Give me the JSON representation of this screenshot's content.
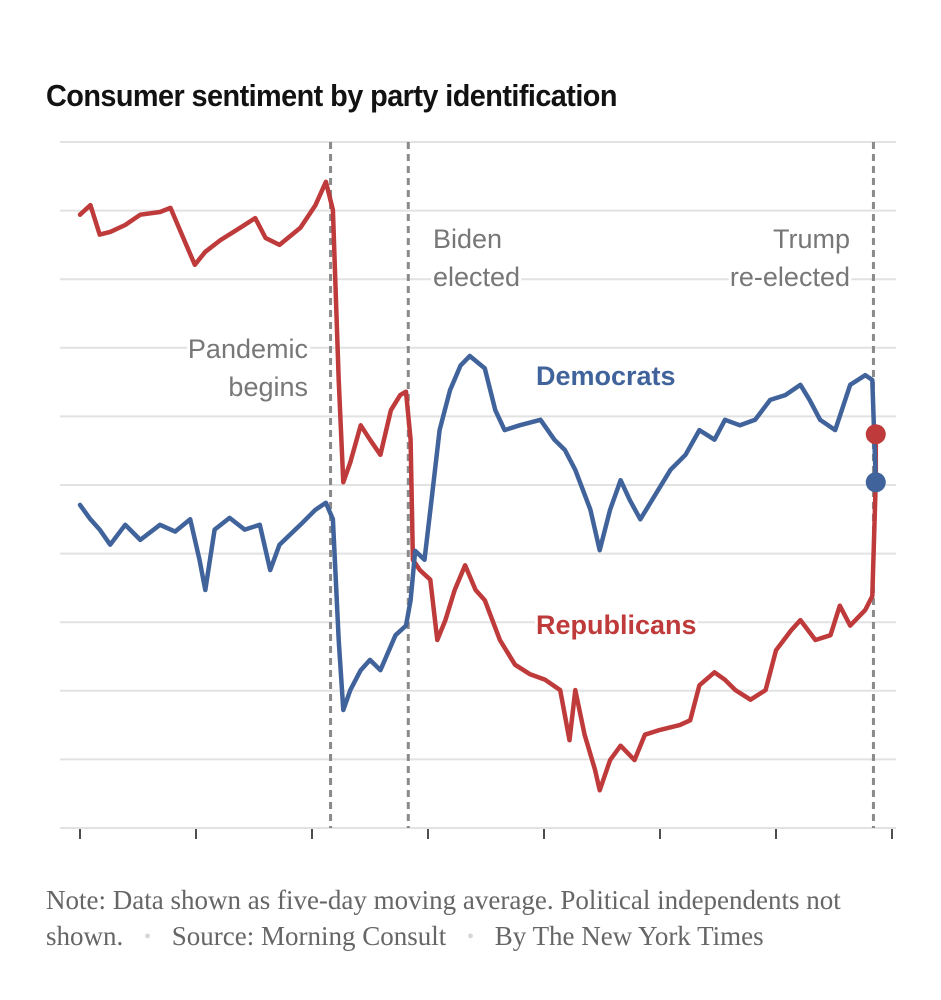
{
  "chart_data": {
    "type": "line",
    "title": "Consumer sentiment by party identification",
    "xlabel": "",
    "ylabel": "",
    "x_unit": "year",
    "y_unit": "relative index (gridline units, 0 = bottom gridline, 10 = top gridline; approximate)",
    "xlim": [
      2017.9,
      2025.2
    ],
    "ylim": [
      0,
      10
    ],
    "grid": true,
    "x_ticks": [
      2018,
      2019,
      2020,
      2021,
      2022,
      2023,
      2024,
      2025
    ],
    "x_tick_labels": [
      "",
      "",
      "",
      "",
      "",
      "",
      "",
      ""
    ],
    "y_gridlines": [
      0,
      1,
      2,
      3,
      4,
      5,
      6,
      7,
      8,
      9,
      10
    ],
    "legend": "inline",
    "series": [
      {
        "name": "Republicans",
        "color": "#bf3a3a",
        "end_marker": true,
        "points": [
          [
            2018.0,
            8.94
          ],
          [
            2018.09,
            9.08
          ],
          [
            2018.17,
            8.65
          ],
          [
            2018.26,
            8.69
          ],
          [
            2018.39,
            8.79
          ],
          [
            2018.52,
            8.94
          ],
          [
            2018.69,
            8.98
          ],
          [
            2018.78,
            9.04
          ],
          [
            2018.86,
            8.72
          ],
          [
            2018.99,
            8.21
          ],
          [
            2019.08,
            8.4
          ],
          [
            2019.21,
            8.57
          ],
          [
            2019.38,
            8.75
          ],
          [
            2019.51,
            8.89
          ],
          [
            2019.6,
            8.6
          ],
          [
            2019.72,
            8.5
          ],
          [
            2019.9,
            8.75
          ],
          [
            2020.03,
            9.08
          ],
          [
            2020.12,
            9.42
          ],
          [
            2020.18,
            9.01
          ],
          [
            2020.23,
            6.53
          ],
          [
            2020.27,
            5.04
          ],
          [
            2020.33,
            5.33
          ],
          [
            2020.42,
            5.87
          ],
          [
            2020.5,
            5.66
          ],
          [
            2020.59,
            5.44
          ],
          [
            2020.68,
            6.09
          ],
          [
            2020.76,
            6.31
          ],
          [
            2020.81,
            6.36
          ],
          [
            2020.85,
            5.66
          ],
          [
            2020.87,
            3.91
          ],
          [
            2020.93,
            3.76
          ],
          [
            2021.02,
            3.62
          ],
          [
            2021.08,
            2.74
          ],
          [
            2021.15,
            3.03
          ],
          [
            2021.23,
            3.47
          ],
          [
            2021.32,
            3.83
          ],
          [
            2021.41,
            3.47
          ],
          [
            2021.49,
            3.32
          ],
          [
            2021.62,
            2.74
          ],
          [
            2021.75,
            2.38
          ],
          [
            2021.88,
            2.24
          ],
          [
            2022.01,
            2.16
          ],
          [
            2022.14,
            2.01
          ],
          [
            2022.22,
            1.28
          ],
          [
            2022.27,
            2.01
          ],
          [
            2022.35,
            1.36
          ],
          [
            2022.44,
            0.85
          ],
          [
            2022.48,
            0.55
          ],
          [
            2022.57,
            0.99
          ],
          [
            2022.66,
            1.2
          ],
          [
            2022.78,
            0.99
          ],
          [
            2022.87,
            1.36
          ],
          [
            2023.0,
            1.43
          ],
          [
            2023.17,
            1.5
          ],
          [
            2023.26,
            1.57
          ],
          [
            2023.34,
            2.08
          ],
          [
            2023.47,
            2.27
          ],
          [
            2023.56,
            2.16
          ],
          [
            2023.65,
            2.01
          ],
          [
            2023.78,
            1.87
          ],
          [
            2023.91,
            2.01
          ],
          [
            2024.0,
            2.59
          ],
          [
            2024.13,
            2.88
          ],
          [
            2024.21,
            3.03
          ],
          [
            2024.34,
            2.74
          ],
          [
            2024.47,
            2.81
          ],
          [
            2024.55,
            3.24
          ],
          [
            2024.64,
            2.95
          ],
          [
            2024.77,
            3.18
          ],
          [
            2024.83,
            3.38
          ],
          [
            2024.86,
            5.07
          ],
          [
            2024.86,
            5.74
          ]
        ]
      },
      {
        "name": "Democrats",
        "color": "#41639b",
        "end_marker": true,
        "points": [
          [
            2018.0,
            4.71
          ],
          [
            2018.09,
            4.5
          ],
          [
            2018.17,
            4.35
          ],
          [
            2018.26,
            4.13
          ],
          [
            2018.39,
            4.42
          ],
          [
            2018.52,
            4.2
          ],
          [
            2018.69,
            4.42
          ],
          [
            2018.82,
            4.32
          ],
          [
            2018.95,
            4.5
          ],
          [
            2019.03,
            3.91
          ],
          [
            2019.08,
            3.47
          ],
          [
            2019.16,
            4.35
          ],
          [
            2019.29,
            4.52
          ],
          [
            2019.42,
            4.35
          ],
          [
            2019.55,
            4.42
          ],
          [
            2019.64,
            3.76
          ],
          [
            2019.72,
            4.13
          ],
          [
            2019.9,
            4.42
          ],
          [
            2020.03,
            4.64
          ],
          [
            2020.12,
            4.74
          ],
          [
            2020.18,
            4.5
          ],
          [
            2020.23,
            2.74
          ],
          [
            2020.27,
            1.72
          ],
          [
            2020.33,
            2.01
          ],
          [
            2020.42,
            2.3
          ],
          [
            2020.5,
            2.45
          ],
          [
            2020.59,
            2.3
          ],
          [
            2020.72,
            2.81
          ],
          [
            2020.81,
            2.95
          ],
          [
            2020.85,
            3.32
          ],
          [
            2020.89,
            4.04
          ],
          [
            2020.97,
            3.91
          ],
          [
            2021.03,
            4.78
          ],
          [
            2021.1,
            5.8
          ],
          [
            2021.19,
            6.38
          ],
          [
            2021.28,
            6.74
          ],
          [
            2021.36,
            6.88
          ],
          [
            2021.49,
            6.7
          ],
          [
            2021.58,
            6.09
          ],
          [
            2021.66,
            5.8
          ],
          [
            2021.79,
            5.87
          ],
          [
            2021.97,
            5.95
          ],
          [
            2022.09,
            5.66
          ],
          [
            2022.18,
            5.51
          ],
          [
            2022.27,
            5.22
          ],
          [
            2022.4,
            4.64
          ],
          [
            2022.48,
            4.05
          ],
          [
            2022.57,
            4.64
          ],
          [
            2022.66,
            5.07
          ],
          [
            2022.74,
            4.78
          ],
          [
            2022.83,
            4.5
          ],
          [
            2022.96,
            4.86
          ],
          [
            2023.09,
            5.22
          ],
          [
            2023.22,
            5.44
          ],
          [
            2023.34,
            5.8
          ],
          [
            2023.47,
            5.66
          ],
          [
            2023.56,
            5.95
          ],
          [
            2023.69,
            5.87
          ],
          [
            2023.82,
            5.95
          ],
          [
            2023.95,
            6.24
          ],
          [
            2024.08,
            6.31
          ],
          [
            2024.21,
            6.46
          ],
          [
            2024.29,
            6.24
          ],
          [
            2024.38,
            5.95
          ],
          [
            2024.51,
            5.8
          ],
          [
            2024.64,
            6.46
          ],
          [
            2024.77,
            6.6
          ],
          [
            2024.83,
            6.53
          ],
          [
            2024.86,
            5.04
          ]
        ]
      }
    ],
    "event_lines": [
      {
        "x": 2020.16,
        "label_lines": [
          "Pandemic",
          "begins"
        ],
        "label_side": "left"
      },
      {
        "x": 2020.83,
        "label_lines": [
          "Biden",
          "elected"
        ],
        "label_side": "right"
      },
      {
        "x": 2024.84,
        "label_lines": [
          "Trump",
          "re-elected"
        ],
        "label_side": "left"
      }
    ],
    "series_labels": [
      {
        "series": "Democrats",
        "text": "Democrats"
      },
      {
        "series": "Republicans",
        "text": "Republicans"
      }
    ]
  },
  "note": {
    "text": "Note: Data shown as five-day moving average. Political independents not shown.",
    "source": "Source: Morning Consult",
    "byline": "By The New York Times",
    "separator": "•"
  }
}
